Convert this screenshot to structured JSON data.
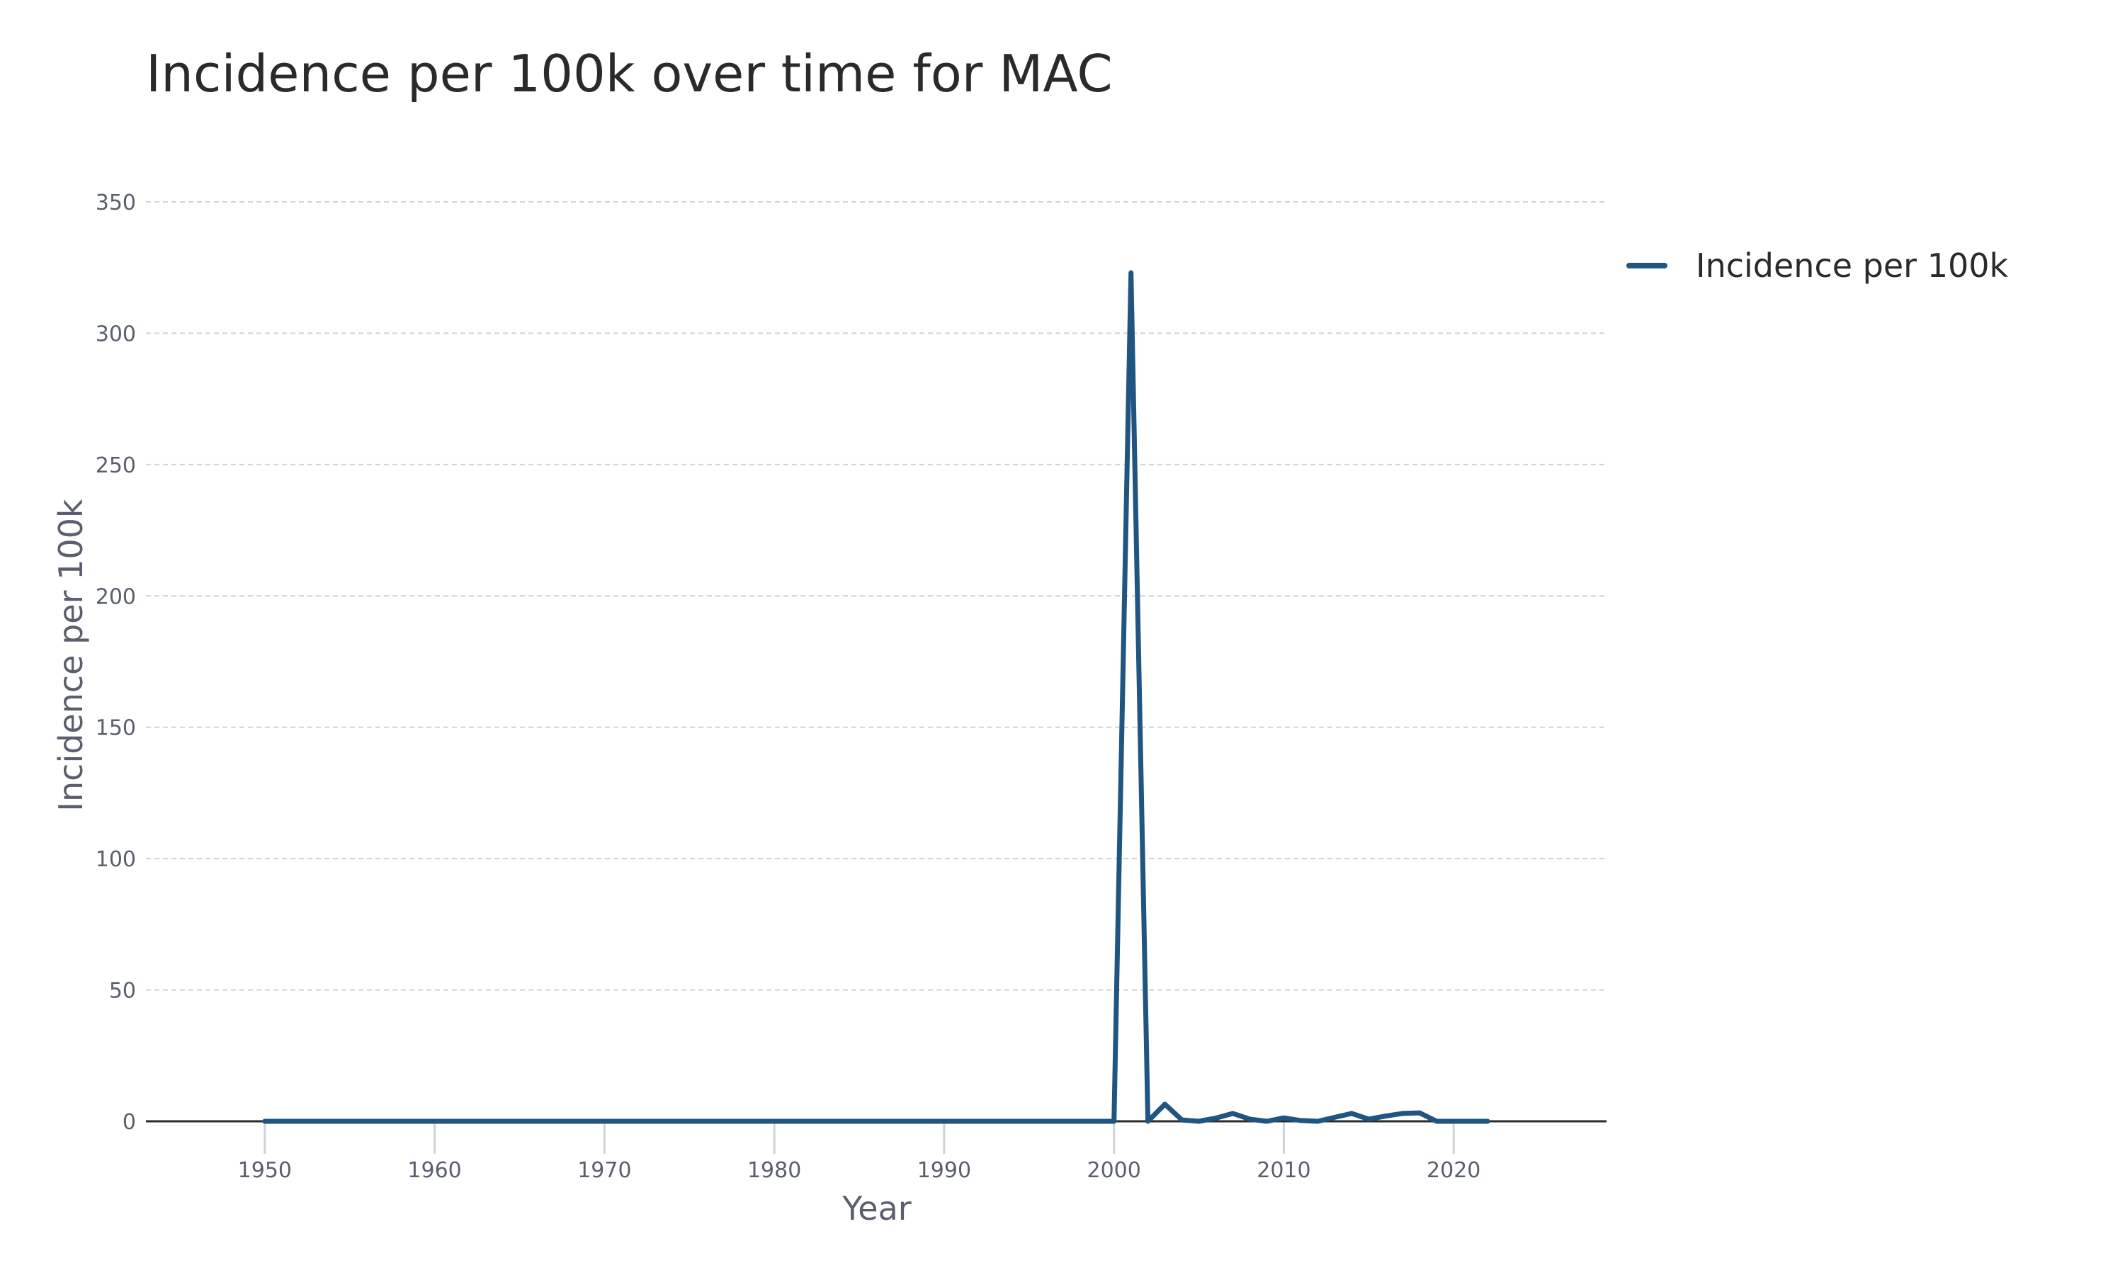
{
  "chart_data": {
    "type": "line",
    "title": "Incidence per 100k over time for MAC",
    "xlabel": "Year",
    "ylabel": "Incidence per 100k",
    "xlim": [
      1943,
      2029
    ],
    "ylim": [
      0,
      350
    ],
    "x_ticks": [
      1950,
      1960,
      1970,
      1980,
      1990,
      2000,
      2010,
      2020
    ],
    "y_ticks": [
      0,
      50,
      100,
      150,
      200,
      250,
      300,
      350
    ],
    "grid": true,
    "legend_position": "top-right",
    "series": [
      {
        "name": "Incidence per 100k",
        "color": "#1f5580",
        "x": [
          1950,
          1951,
          1952,
          1953,
          1954,
          1955,
          1956,
          1957,
          1958,
          1959,
          1960,
          1961,
          1962,
          1963,
          1964,
          1965,
          1966,
          1967,
          1968,
          1969,
          1970,
          1971,
          1972,
          1973,
          1974,
          1975,
          1976,
          1977,
          1978,
          1979,
          1980,
          1981,
          1982,
          1983,
          1984,
          1985,
          1986,
          1987,
          1988,
          1989,
          1990,
          1991,
          1992,
          1993,
          1994,
          1995,
          1996,
          1997,
          1998,
          1999,
          2000,
          2001,
          2002,
          2003,
          2004,
          2005,
          2006,
          2007,
          2008,
          2009,
          2010,
          2011,
          2012,
          2013,
          2014,
          2015,
          2016,
          2017,
          2018,
          2019,
          2020,
          2021,
          2022
        ],
        "y": [
          0,
          0,
          0,
          0,
          0,
          0,
          0,
          0,
          0,
          0,
          0,
          0,
          0,
          0,
          0,
          0,
          0,
          0,
          0,
          0,
          0,
          0,
          0,
          0,
          0,
          0,
          0,
          0,
          0,
          0,
          0,
          0,
          0,
          0,
          0,
          0,
          0,
          0,
          0,
          0,
          0,
          0,
          0,
          0,
          0,
          0,
          0,
          0,
          0,
          0,
          0,
          323,
          0,
          6.5,
          0.5,
          0,
          1.2,
          3,
          0.8,
          0,
          1.3,
          0.3,
          0,
          1.5,
          3,
          0.8,
          2,
          3,
          3.2,
          0,
          0,
          0,
          0
        ]
      }
    ]
  }
}
